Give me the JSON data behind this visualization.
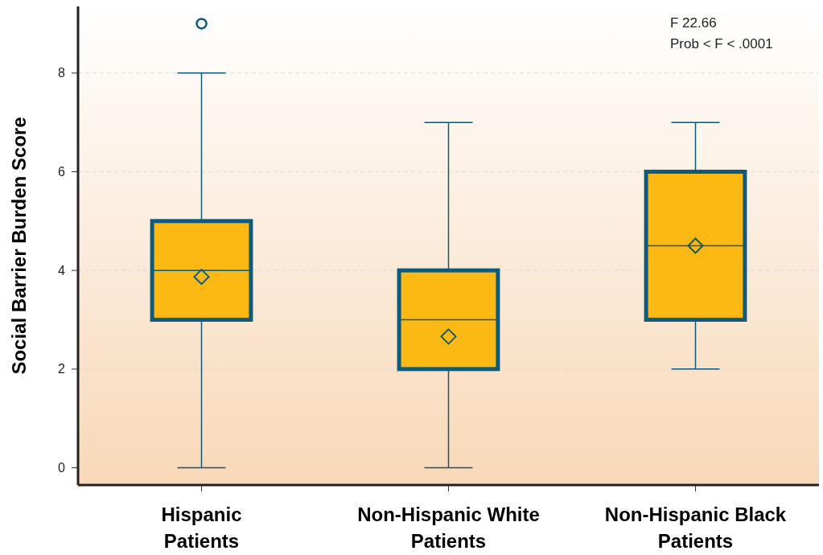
{
  "chart_data": {
    "type": "box",
    "ylabel": "Social Barrier Burden Score",
    "categories": [
      "Hispanic Patients",
      "Non-Hispanic White Patients",
      "Non-Hispanic Black Patients"
    ],
    "series": [
      {
        "color": "#fdb913",
        "boxes": [
          {
            "low": 0,
            "q1": 3,
            "median": 4,
            "q3": 5,
            "high": 8,
            "mean": 3.87,
            "outliers": [
              9
            ]
          },
          {
            "low": 0,
            "q1": 2,
            "median": 3,
            "q3": 4,
            "high": 7,
            "mean": 2.66
          },
          {
            "low": 2,
            "q1": 3,
            "median": 4.5,
            "q3": 6,
            "high": 7,
            "mean": 4.5
          }
        ]
      }
    ],
    "ylim": [
      -0.35,
      9.35
    ],
    "yticks": [
      0,
      2,
      4,
      6,
      8
    ],
    "grid": "y",
    "marker": "diamond",
    "annotations": [
      "F 22.66",
      "Prob < F < .0001"
    ]
  }
}
